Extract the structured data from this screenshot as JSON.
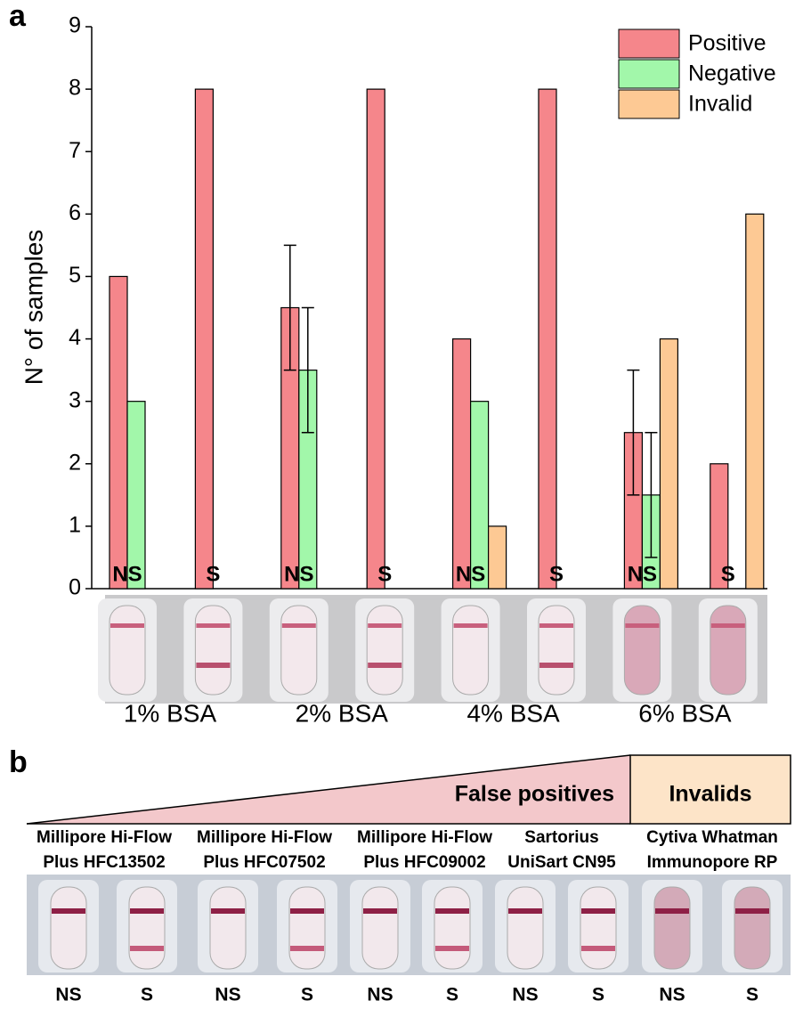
{
  "chart_data": {
    "type": "bar",
    "panel_label": "a",
    "ylabel": "N° of samples",
    "categories": [
      "NS",
      "S",
      "NS",
      "S",
      "NS",
      "S",
      "NS",
      "S"
    ],
    "groups": [
      "1% BSA",
      "2% BSA",
      "4% BSA",
      "6% BSA"
    ],
    "series": [
      {
        "name": "Positive",
        "color": "#f5868b",
        "values": [
          5,
          8,
          4.5,
          8,
          4,
          8,
          2.5,
          2
        ],
        "errors": [
          null,
          null,
          1,
          null,
          null,
          null,
          1,
          null
        ]
      },
      {
        "name": "Negative",
        "color": "#a2f7aa",
        "values": [
          3,
          null,
          3.5,
          null,
          3,
          null,
          1.5,
          null
        ],
        "errors": [
          null,
          null,
          1,
          null,
          null,
          null,
          1,
          null
        ]
      },
      {
        "name": "Invalid",
        "color": "#fdc994",
        "values": [
          null,
          null,
          null,
          null,
          1,
          null,
          4,
          6
        ],
        "errors": [
          null,
          null,
          null,
          null,
          null,
          null,
          null,
          null
        ]
      }
    ],
    "ylim": [
      0,
      9
    ],
    "yticks": [
      0,
      1,
      2,
      3,
      4,
      5,
      6,
      7,
      8,
      9
    ],
    "legend": "top-right"
  },
  "panel_b": {
    "label": "b",
    "banners": [
      "False positives",
      "Invalids"
    ],
    "membranes": [
      [
        "Millipore Hi-Flow",
        "Plus HFC13502"
      ],
      [
        "Millipore Hi-Flow",
        "Plus HFC07502"
      ],
      [
        "Millipore Hi-Flow",
        "Plus HFC09002"
      ],
      [
        "Sartorius",
        "UniSart CN95"
      ],
      [
        "Cytiva Whatman",
        "Immunopore RP"
      ]
    ],
    "samples": [
      "NS",
      "S",
      "NS",
      "S",
      "NS",
      "S",
      "NS",
      "S",
      "NS",
      "S"
    ]
  }
}
